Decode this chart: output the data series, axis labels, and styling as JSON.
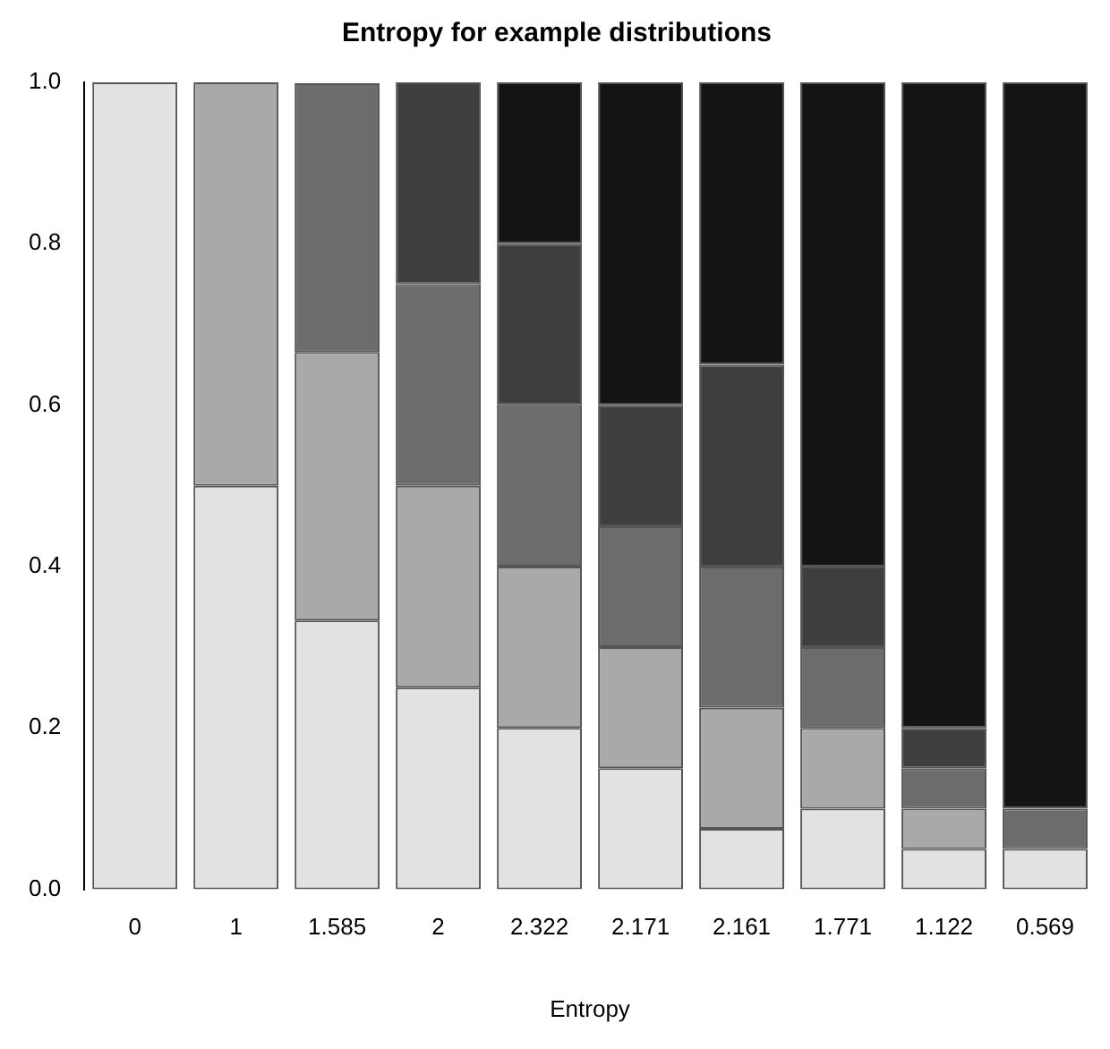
{
  "chart_data": {
    "type": "bar",
    "stacked": true,
    "title": "Entropy for example distributions",
    "xlabel": "Entropy",
    "categories": [
      "0",
      "1",
      "1.585",
      "2",
      "2.322",
      "2.171",
      "2.161",
      "1.771",
      "1.122",
      "0.569"
    ],
    "series": [
      {
        "color": "#e2e2e2",
        "values": [
          1,
          0.5,
          0.333,
          0.25,
          0.2,
          0.15,
          0.075,
          0.1,
          0.05,
          0.05
        ]
      },
      {
        "color": "#a9a9a9",
        "values": [
          null,
          0.5,
          0.333,
          0.25,
          0.2,
          0.15,
          0.15,
          0.1,
          0.05,
          null
        ]
      },
      {
        "color": "#6c6c6c",
        "values": [
          null,
          null,
          0.333,
          0.25,
          0.2,
          0.15,
          0.175,
          0.1,
          0.05,
          0.05
        ]
      },
      {
        "color": "#3e3e3e",
        "values": [
          null,
          null,
          null,
          0.25,
          0.2,
          0.15,
          0.25,
          0.1,
          0.05,
          null
        ]
      },
      {
        "color": "#141414",
        "values": [
          null,
          null,
          null,
          null,
          0.2,
          0.4,
          0.35,
          0.6,
          0.8,
          0.9
        ]
      }
    ],
    "ylim": [
      0,
      1
    ],
    "yticks": [
      {
        "value": 0,
        "label": "0.0"
      },
      {
        "value": 0.2,
        "label": "0.2"
      },
      {
        "value": 0.4,
        "label": "0.4"
      },
      {
        "value": 0.6,
        "label": "0.6"
      },
      {
        "value": 0.8,
        "label": "0.8"
      },
      {
        "value": 1,
        "label": "1.0"
      }
    ],
    "grid": false,
    "legend": false
  }
}
